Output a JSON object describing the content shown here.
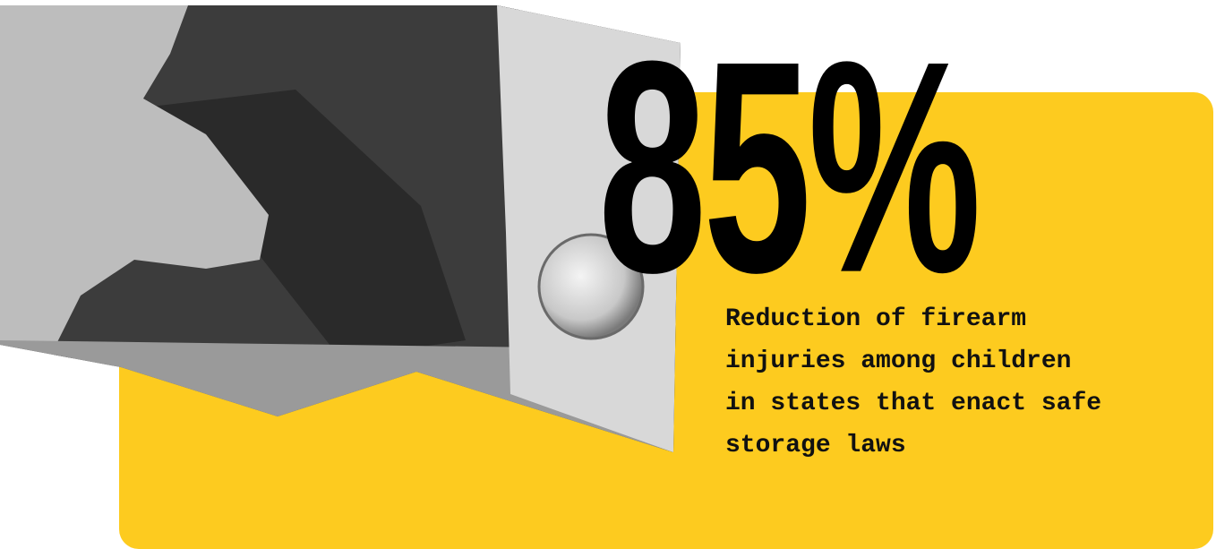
{
  "stat": {
    "value_text": "85%",
    "description_lines": [
      "Reduction of firearm",
      "injuries among children",
      "in states that enact safe",
      "storage laws"
    ]
  }
}
